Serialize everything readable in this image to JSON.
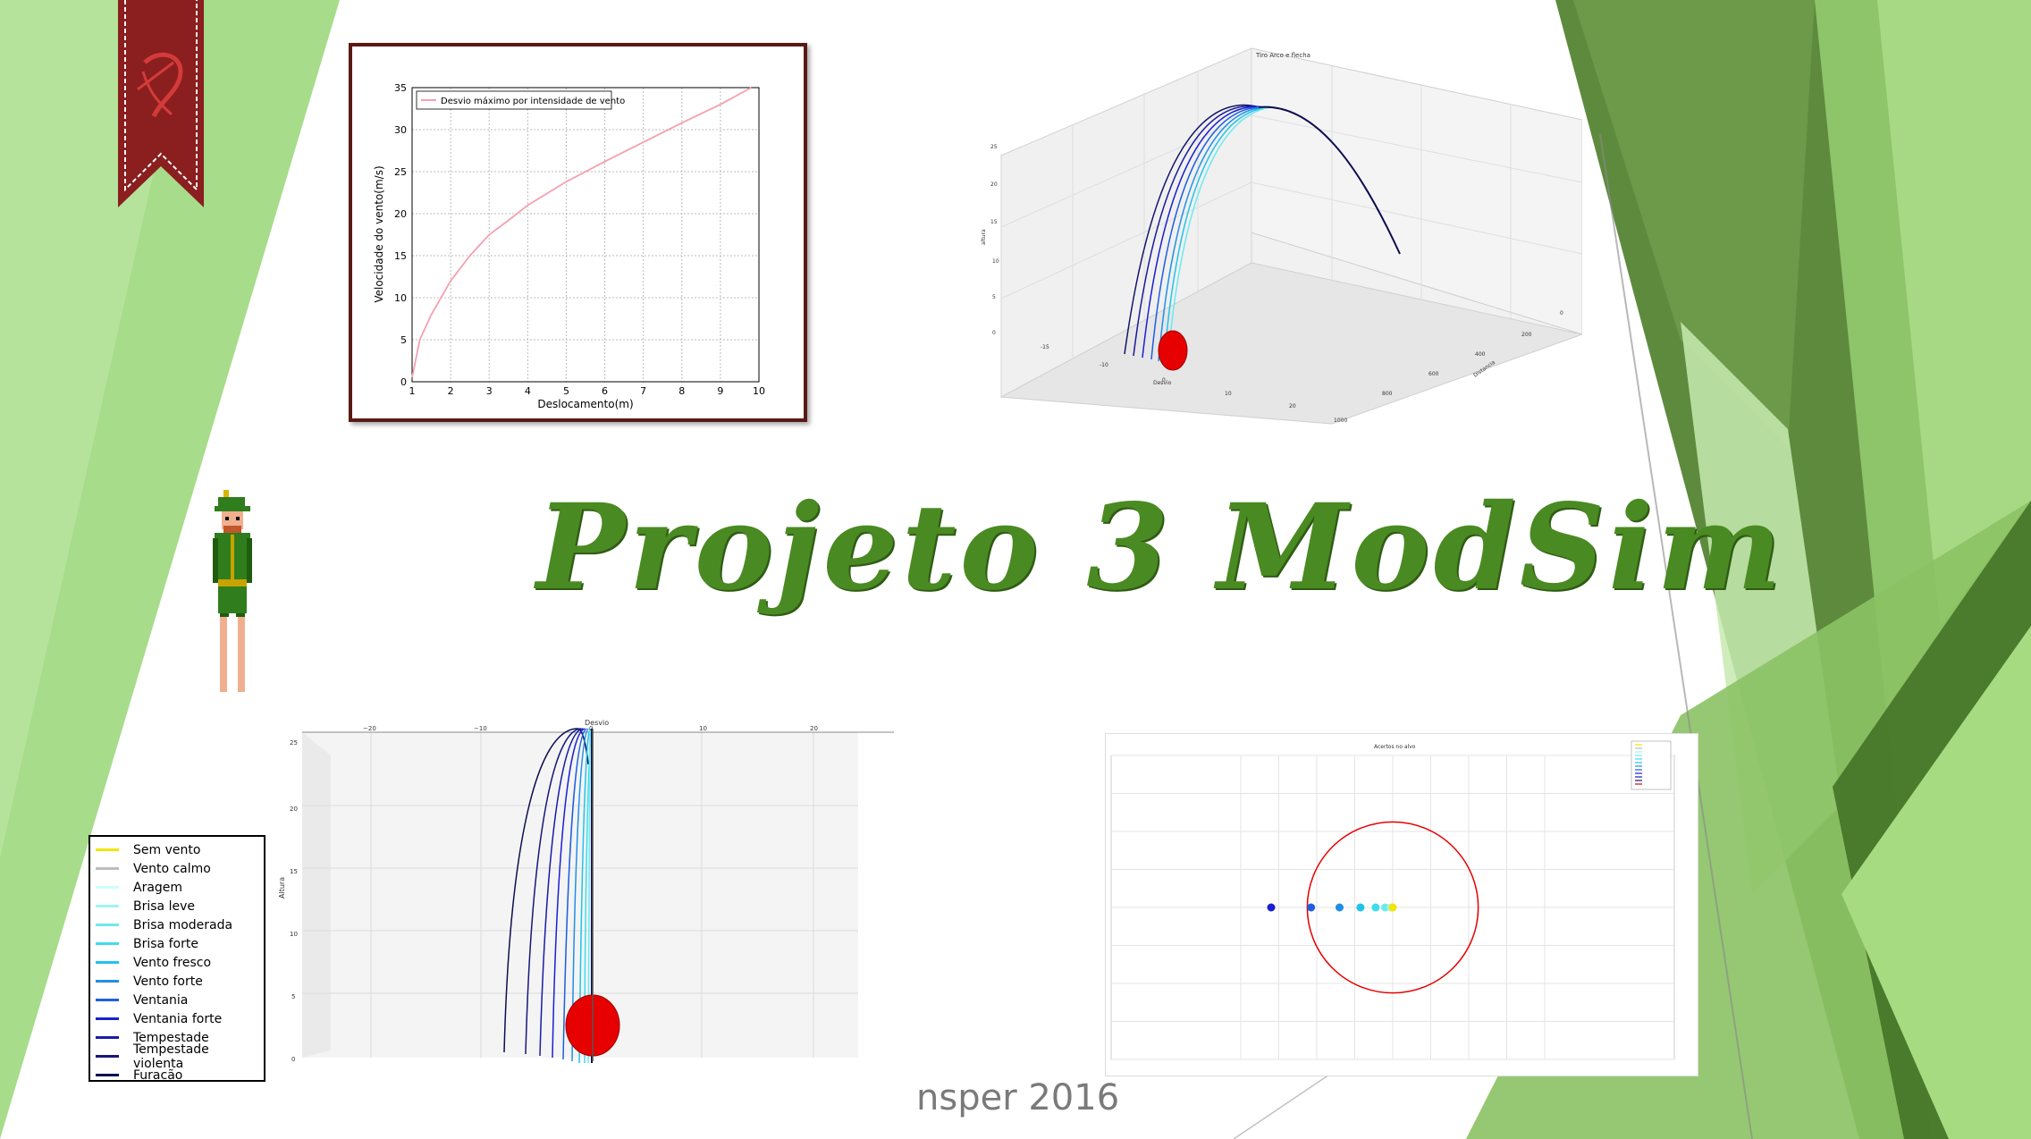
{
  "slide": {
    "title": "Projeto 3 ModSim",
    "footer": "nsper 2016",
    "colors": {
      "title_green": "#4a8a22",
      "accent_dark_green": "#5f8b3d",
      "light_green": "#a8d98c",
      "frame": "#5a1a14",
      "ribbon": "#8b1e1e"
    },
    "icons": {
      "ribbon": "bow-ribbon-icon",
      "character": "archer-sprite-icon"
    }
  },
  "chart_top_left": {
    "chart_data": {
      "type": "line",
      "title": "",
      "xlabel": "Deslocamento(m)",
      "ylabel": "Velocidade do vento(m/s)",
      "xlim": [
        1,
        10
      ],
      "ylim": [
        0,
        35
      ],
      "x_ticks": [
        "1",
        "2",
        "3",
        "4",
        "5",
        "6",
        "7",
        "8",
        "9",
        "10"
      ],
      "y_ticks": [
        "0",
        "5",
        "10",
        "15",
        "20",
        "25",
        "30",
        "35"
      ],
      "grid": true,
      "legend_position": "top-left",
      "series": [
        {
          "name": "Desvio máximo por intensidade de vento",
          "color": "#f4a0b0",
          "x": [
            1.0,
            1.2,
            1.5,
            2.0,
            2.5,
            3.0,
            3.5,
            4.0,
            5.0,
            6.0,
            7.0,
            8.0,
            9.0,
            9.8
          ],
          "y": [
            0.5,
            5.0,
            8.0,
            12.0,
            15.0,
            17.5,
            19.2,
            21.0,
            23.8,
            26.2,
            28.5,
            30.8,
            33.0,
            35.0
          ]
        }
      ]
    }
  },
  "chart_top_right": {
    "title": "Tiro Arco e flecha",
    "xlabel": "Desvio",
    "ylabel": "altura",
    "zlabel": "Distancia",
    "y_ticks": [
      "0",
      "5",
      "10",
      "15",
      "20",
      "25"
    ],
    "x_ticks": [
      "-15",
      "-10",
      "0",
      "10",
      "20"
    ],
    "z_ticks": [
      "0",
      "200",
      "400",
      "600",
      "800",
      "1000"
    ]
  },
  "chart_bottom_left": {
    "title": "Desvio",
    "ylabel": "Altura",
    "x_ticks": [
      "−20",
      "−10",
      "0",
      "10",
      "20"
    ],
    "y_ticks": [
      "0",
      "5",
      "10",
      "15",
      "20",
      "25"
    ],
    "legend": [
      {
        "label": "Sem vento",
        "color": "#f2e600"
      },
      {
        "label": "Vento calmo",
        "color": "#bdbdbd"
      },
      {
        "label": "Aragem",
        "color": "#ccffff"
      },
      {
        "label": "Brisa leve",
        "color": "#9ef6f2"
      },
      {
        "label": "Brisa moderada",
        "color": "#6de9ee"
      },
      {
        "label": "Brisa forte",
        "color": "#3fdcec"
      },
      {
        "label": "Vento fresco",
        "color": "#22c2ea"
      },
      {
        "label": "Vento forte",
        "color": "#1f8fe6"
      },
      {
        "label": "Ventania",
        "color": "#1e5fe0"
      },
      {
        "label": "Ventania forte",
        "color": "#1a1fd4"
      },
      {
        "label": "Tempestade",
        "color": "#1a1aa8"
      },
      {
        "label": "Tempestade violenta",
        "color": "#17177a"
      },
      {
        "label": "Furacão",
        "color": "#0d0d50"
      }
    ]
  },
  "chart_bottom_right": {
    "title": "Acertos no alvo",
    "chart_data": {
      "type": "scatter",
      "xlim": [
        -8,
        8
      ],
      "ylim": [
        -8,
        8
      ],
      "target_radius": 4.5,
      "grid": true,
      "legend_position": "top-right",
      "points": [
        {
          "x": -6.4,
          "y": 0,
          "color": "#1a1fd4"
        },
        {
          "x": -4.3,
          "y": 0,
          "color": "#1e5fe0"
        },
        {
          "x": -2.8,
          "y": 0,
          "color": "#1f8fe6"
        },
        {
          "x": -1.7,
          "y": 0,
          "color": "#22c2ea"
        },
        {
          "x": -0.9,
          "y": 0,
          "color": "#3fdcec"
        },
        {
          "x": -0.4,
          "y": 0,
          "color": "#6de9ee"
        },
        {
          "x": -0.1,
          "y": 0,
          "color": "#9ef6f2"
        },
        {
          "x": 0.0,
          "y": 0,
          "color": "#f2e600"
        }
      ]
    }
  }
}
